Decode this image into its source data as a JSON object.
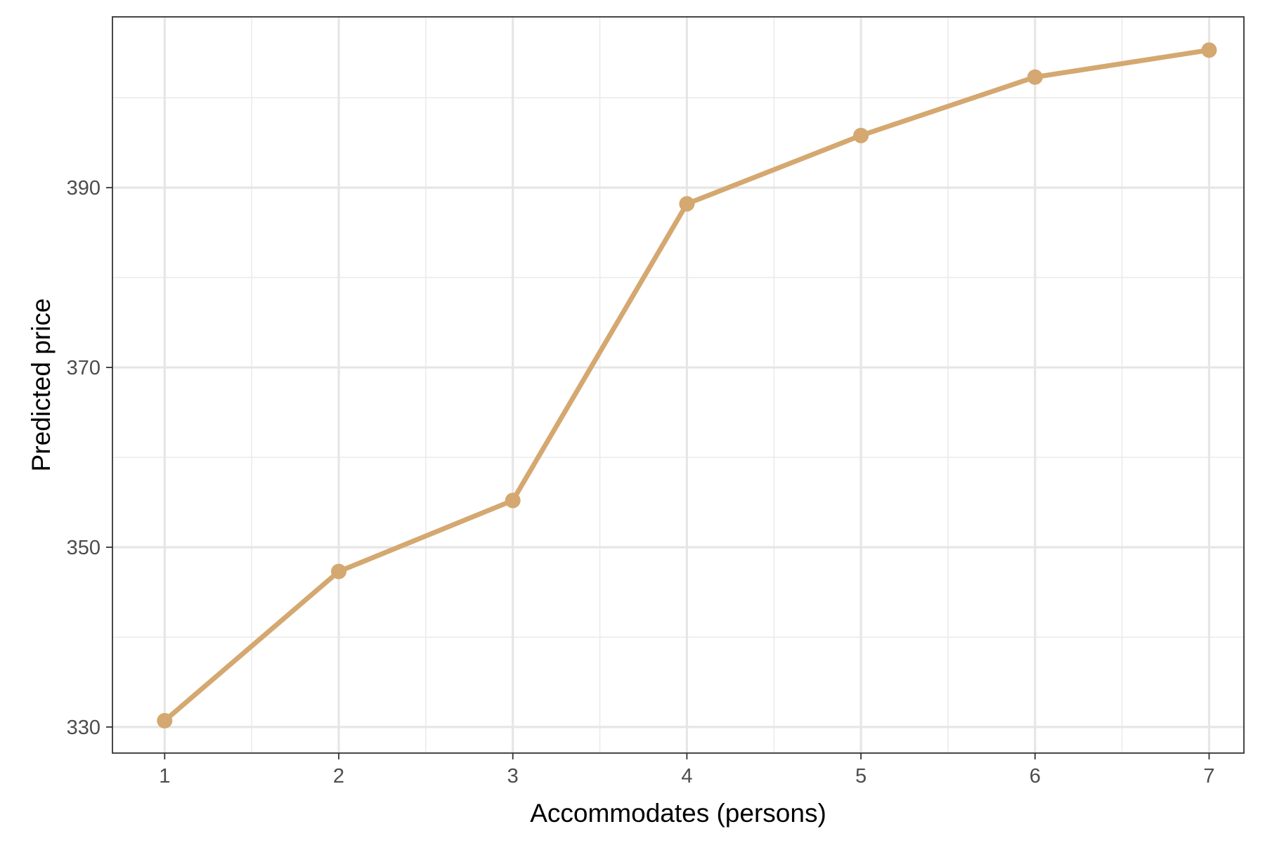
{
  "chart_data": {
    "type": "line",
    "title": "",
    "xlabel": "Accommodates (persons)",
    "ylabel": "Predicted price",
    "x": [
      1,
      2,
      3,
      4,
      5,
      6,
      7
    ],
    "x_ticks": [
      1,
      2,
      3,
      4,
      5,
      6,
      7
    ],
    "x_tick_labels": [
      "1",
      "2",
      "3",
      "4",
      "5",
      "6",
      "7"
    ],
    "y_ticks": [
      330,
      350,
      370,
      390
    ],
    "y_tick_labels": [
      "330",
      "350",
      "370",
      "390"
    ],
    "xlim": [
      0.7,
      7.2
    ],
    "ylim": [
      327.1,
      409.0
    ],
    "series": [
      {
        "values": [
          330.7,
          347.3,
          355.2,
          388.2,
          395.8,
          402.3,
          405.3
        ],
        "color": "#D4A870"
      }
    ],
    "grid": true,
    "legend": "none"
  }
}
